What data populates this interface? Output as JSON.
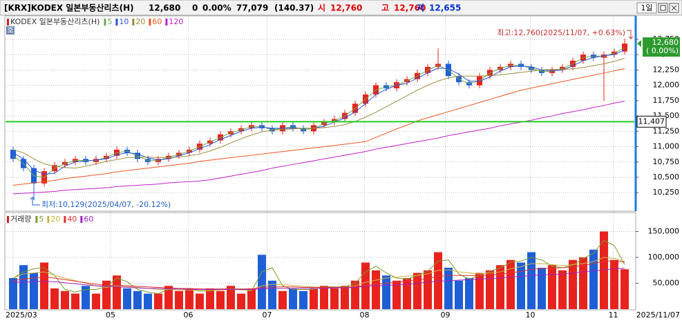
{
  "header": {
    "name": "[KRX]KODEX 일본부동산리츠(H)",
    "price": "12,680",
    "change": "0",
    "change_pct": "0.00%",
    "volume": "77,079",
    "ratio": "(140.37)",
    "open_label": "시",
    "open": "12,760",
    "high_label": "고",
    "high": "12,760",
    "low_label": "저",
    "low": "12,655",
    "period": "1일"
  },
  "chart_data": [
    {
      "type": "candlestick",
      "title": "KODEX 일본부동산리츠(H)",
      "badge": "호",
      "open": [
        10950,
        10800,
        10650,
        10400,
        10600,
        10700,
        10750,
        10800,
        10750,
        10800,
        10850,
        10950,
        10900,
        10800,
        10750,
        10800,
        10850,
        10900,
        10950,
        11050,
        11100,
        11200,
        11250,
        11300,
        11350,
        11300,
        11250,
        11350,
        11300,
        11250,
        11350,
        11400,
        11450,
        11550,
        11700,
        11850,
        12000,
        11950,
        12050,
        12100,
        12200,
        12300,
        12350,
        12150,
        12050,
        12000,
        12150,
        12250,
        12300,
        12350,
        12300,
        12250,
        12200,
        12250,
        12300,
        12400,
        12500,
        12450,
        12500,
        12550
      ],
      "high": [
        11000,
        10850,
        10700,
        10650,
        10750,
        10800,
        10850,
        10850,
        10850,
        10900,
        11000,
        11000,
        10950,
        10850,
        10850,
        10900,
        10950,
        11000,
        11100,
        11150,
        11250,
        11300,
        11350,
        11400,
        11400,
        11350,
        11400,
        11400,
        11350,
        11400,
        11450,
        11500,
        11600,
        11750,
        11900,
        12050,
        12050,
        12100,
        12150,
        12250,
        12350,
        12600,
        12400,
        12200,
        12100,
        12200,
        12300,
        12350,
        12400,
        12400,
        12350,
        12300,
        12300,
        12350,
        12450,
        12550,
        12550,
        12550,
        12600,
        12760
      ],
      "low": [
        10750,
        10600,
        10129,
        10350,
        10550,
        10650,
        10700,
        10700,
        10700,
        10750,
        10800,
        10850,
        10750,
        10700,
        10700,
        10750,
        10800,
        10850,
        10900,
        11000,
        11050,
        11150,
        11200,
        11250,
        11250,
        11200,
        11200,
        11250,
        11200,
        11200,
        11300,
        11350,
        11400,
        11500,
        11650,
        11800,
        11900,
        11900,
        12000,
        12050,
        12150,
        12250,
        12100,
        12000,
        11950,
        11950,
        12100,
        12200,
        12250,
        12250,
        12200,
        12150,
        12150,
        12200,
        12250,
        12350,
        12400,
        11750,
        12450,
        12500
      ],
      "close": [
        10800,
        10650,
        10400,
        10600,
        10700,
        10750,
        10800,
        10750,
        10800,
        10850,
        10950,
        10900,
        10800,
        10750,
        10800,
        10850,
        10900,
        10950,
        11050,
        11100,
        11200,
        11250,
        11300,
        11350,
        11300,
        11250,
        11350,
        11300,
        11250,
        11350,
        11400,
        11450,
        11550,
        11700,
        11850,
        12000,
        11950,
        12050,
        12100,
        12200,
        12300,
        12350,
        12150,
        12050,
        12000,
        12150,
        12250,
        12300,
        12350,
        12300,
        12250,
        12200,
        12250,
        12300,
        12400,
        12500,
        12450,
        12500,
        12550,
        12680
      ],
      "up_color": "#e8231e",
      "down_color": "#1f5fd6",
      "series": [
        {
          "name": "5",
          "color": "#6aa84f",
          "values": [
            10850,
            10725,
            10525,
            10500,
            10650,
            10725,
            10775,
            10775,
            10775,
            10825,
            10900,
            10925,
            10850,
            10775,
            10775,
            10825,
            10875,
            10925,
            11000,
            11075,
            11150,
            11225,
            11275,
            11325,
            11325,
            11275,
            11300,
            11325,
            11275,
            11300,
            11375,
            11425,
            11500,
            11625,
            11775,
            11925,
            11975,
            12000,
            12075,
            12150,
            12250,
            12325,
            12250,
            12100,
            12025,
            12075,
            12200,
            12275,
            12325,
            12325,
            12275,
            12225,
            12225,
            12275,
            12350,
            12450,
            12475,
            12475,
            12525,
            12615
          ]
        },
        {
          "name": "10",
          "color": "#2b54d8",
          "values": [
            10900,
            10800,
            10617,
            10550,
            10567,
            10683,
            10750,
            10767,
            10783,
            10800,
            10867,
            10900,
            10883,
            10817,
            10783,
            10800,
            10850,
            10900,
            10967,
            11033,
            11117,
            11183,
            11250,
            11300,
            11317,
            11300,
            11300,
            11300,
            11300,
            11300,
            11333,
            11400,
            11467,
            11567,
            11700,
            11850,
            11933,
            12000,
            12033,
            12117,
            12200,
            12283,
            12267,
            12183,
            12067,
            12067,
            12133,
            12233,
            12300,
            12317,
            12300,
            12250,
            12233,
            12250,
            12317,
            12400,
            12450,
            12483,
            12500,
            12577
          ]
        },
        {
          "name": "20",
          "color": "#a08a3c",
          "values": [
            10950,
            10900,
            10800,
            10720,
            10680,
            10660,
            10650,
            10680,
            10720,
            10760,
            10790,
            10820,
            10830,
            10830,
            10820,
            10820,
            10830,
            10850,
            10880,
            10930,
            10990,
            11060,
            11130,
            11190,
            11240,
            11270,
            11280,
            11290,
            11300,
            11300,
            11310,
            11330,
            11360,
            11410,
            11480,
            11560,
            11650,
            11740,
            11830,
            11920,
            12000,
            12070,
            12120,
            12150,
            12150,
            12150,
            12160,
            12170,
            12190,
            12210,
            12230,
            12250,
            12260,
            12260,
            12270,
            12290,
            12320,
            12350,
            12390,
            12440
          ]
        },
        {
          "name": "60",
          "color": "#e8571e",
          "values": [
            10370,
            10390,
            10410,
            10430,
            10450,
            10480,
            10500,
            10520,
            10540,
            10560,
            10590,
            10610,
            10630,
            10650,
            10670,
            10690,
            10710,
            10730,
            10760,
            10780,
            10800,
            10820,
            10840,
            10860,
            10880,
            10900,
            10920,
            10940,
            10960,
            10980,
            11000,
            11020,
            11040,
            11060,
            11080,
            11150,
            11220,
            11290,
            11350,
            11420,
            11470,
            11520,
            11570,
            11620,
            11670,
            11720,
            11770,
            11820,
            11870,
            11920,
            11955,
            11990,
            12025,
            12060,
            12095,
            12130,
            12165,
            12200,
            12235,
            12270
          ]
        },
        {
          "name": "120",
          "color": "#c020c8",
          "values": [
            10230,
            10240,
            10250,
            10260,
            10270,
            10290,
            10300,
            10310,
            10320,
            10330,
            10350,
            10360,
            10370,
            10380,
            10390,
            10410,
            10420,
            10430,
            10440,
            10460,
            10490,
            10520,
            10550,
            10580,
            10610,
            10650,
            10680,
            10710,
            10740,
            10770,
            10800,
            10830,
            10860,
            10890,
            10920,
            10960,
            10990,
            11020,
            11050,
            11080,
            11110,
            11140,
            11180,
            11210,
            11240,
            11270,
            11300,
            11340,
            11370,
            11400,
            11430,
            11470,
            11500,
            11540,
            11570,
            11600,
            11640,
            11670,
            11710,
            11740
          ]
        }
      ],
      "ylim": [
        9960,
        13120
      ],
      "yticks": [
        {
          "value": 12750,
          "label": "12,750"
        },
        {
          "value": 12500,
          "label": "12,500"
        },
        {
          "value": 12250,
          "label": "12,250"
        },
        {
          "value": 12000,
          "label": "12,000"
        },
        {
          "value": 11750,
          "label": "11,750"
        },
        {
          "value": 11500,
          "label": "11,500"
        },
        {
          "value": 11250,
          "label": "11,250"
        },
        {
          "value": 11000,
          "label": "11,000"
        },
        {
          "value": 10750,
          "label": "10,750"
        },
        {
          "value": 10500,
          "label": "10,500"
        },
        {
          "value": 10250,
          "label": "10,250"
        }
      ],
      "xticks": [
        {
          "value": 0,
          "label": "2025/03"
        },
        {
          "value": 9.4,
          "label": "05"
        },
        {
          "value": 16.9,
          "label": "06"
        },
        {
          "value": 24.5,
          "label": "07"
        },
        {
          "value": 33.9,
          "label": "08"
        },
        {
          "value": 41.7,
          "label": "09"
        },
        {
          "value": 49.9,
          "label": "10"
        },
        {
          "value": 57.9,
          "label": "11"
        }
      ],
      "last_date": "2025/11/07",
      "hline": {
        "value": 11407,
        "label": "11,407",
        "color": "#22cc22"
      },
      "current": {
        "value": 12680,
        "label": "12,680",
        "pct": "( 0.00%)",
        "color": "#2e9a2e"
      },
      "high_note": "최고:12,760(2025/11/07, +0.63%)",
      "low_note": "최저:10,129(2025/04/07, -20.12%)",
      "grid": true
    },
    {
      "type": "bar",
      "title": "거래량",
      "values": [
        60000,
        85000,
        70000,
        90000,
        40000,
        35000,
        30000,
        45000,
        30000,
        55000,
        65000,
        40000,
        35000,
        30000,
        30000,
        45000,
        35000,
        40000,
        30000,
        40000,
        35000,
        45000,
        30000,
        40000,
        105000,
        55000,
        35000,
        40000,
        35000,
        40000,
        45000,
        40000,
        45000,
        55000,
        90000,
        75000,
        65000,
        55000,
        60000,
        70000,
        75000,
        110000,
        80000,
        55000,
        60000,
        70000,
        75000,
        85000,
        95000,
        90000,
        110000,
        80000,
        85000,
        75000,
        95000,
        100000,
        115000,
        150000,
        95000,
        77079
      ],
      "series": [
        {
          "name": "5",
          "color": "#7a9a2a",
          "values": [
            60000,
            72000,
            78000,
            80000,
            65000,
            38000,
            33000,
            38000,
            38000,
            43000,
            60000,
            53000,
            38000,
            33000,
            30000,
            38000,
            40000,
            38000,
            35000,
            35000,
            38000,
            40000,
            38000,
            35000,
            72000,
            80000,
            45000,
            38000,
            38000,
            38000,
            43000,
            43000,
            43000,
            50000,
            72000,
            83000,
            70000,
            60000,
            58000,
            65000,
            73000,
            93000,
            95000,
            68000,
            58000,
            65000,
            73000,
            80000,
            90000,
            93000,
            100000,
            95000,
            83000,
            80000,
            85000,
            98000,
            108000,
            133000,
            123000,
            86000
          ]
        },
        {
          "name": "20",
          "color": "#c8b43c",
          "values": [
            60000,
            68000,
            70000,
            72000,
            65000,
            60000,
            55000,
            50000,
            45000,
            42000,
            45000,
            44000,
            42000,
            40000,
            38000,
            38000,
            37000,
            37000,
            36000,
            36000,
            37000,
            38000,
            37000,
            37000,
            45000,
            48000,
            47000,
            46000,
            44000,
            43000,
            42000,
            41000,
            42000,
            45000,
            52000,
            56000,
            60000,
            62000,
            64000,
            65000,
            68000,
            75000,
            76000,
            72000,
            70000,
            68000,
            70000,
            72000,
            78000,
            82000,
            88000,
            88000,
            86000,
            84000,
            86000,
            88000,
            92000,
            100000,
            98000,
            92000
          ]
        },
        {
          "name": "40",
          "color": "#e03030",
          "values": [
            55000,
            58000,
            60000,
            62000,
            60000,
            57000,
            54000,
            51000,
            48000,
            46000,
            46000,
            45000,
            44000,
            43000,
            42000,
            41000,
            40000,
            40000,
            39000,
            39000,
            39000,
            39000,
            39000,
            39000,
            42000,
            43000,
            43000,
            43000,
            42000,
            42000,
            42000,
            42000,
            42000,
            43000,
            46000,
            48000,
            50000,
            52000,
            54000,
            56000,
            59000,
            63000,
            65000,
            65000,
            65000,
            65000,
            66000,
            67000,
            70000,
            73000,
            77000,
            78000,
            79000,
            80000,
            82000,
            84000,
            88000,
            93000,
            93000,
            91000
          ]
        },
        {
          "name": "60",
          "color": "#a020c0",
          "values": [
            52000,
            52000,
            53000,
            54000,
            53000,
            51000,
            49000,
            47000,
            45000,
            44000,
            43000,
            42000,
            41000,
            40000,
            40000,
            39000,
            39000,
            38000,
            38000,
            38000,
            38000,
            38000,
            38000,
            38000,
            39000,
            40000,
            40000,
            40000,
            40000,
            40000,
            40000,
            41000,
            41000,
            42000,
            44000,
            45000,
            46000,
            47000,
            48000,
            50000,
            52000,
            54000,
            55000,
            56000,
            57000,
            58000,
            59000,
            60000,
            62000,
            63000,
            65000,
            66000,
            67000,
            68000,
            70000,
            72000,
            74000,
            76000,
            78000,
            79000
          ]
        }
      ],
      "ylim": [
        0,
        184000
      ],
      "yticks": [
        {
          "value": 150000,
          "label": "150,000"
        },
        {
          "value": 100000,
          "label": "100,000"
        },
        {
          "value": 50000,
          "label": "50,000"
        }
      ]
    }
  ]
}
